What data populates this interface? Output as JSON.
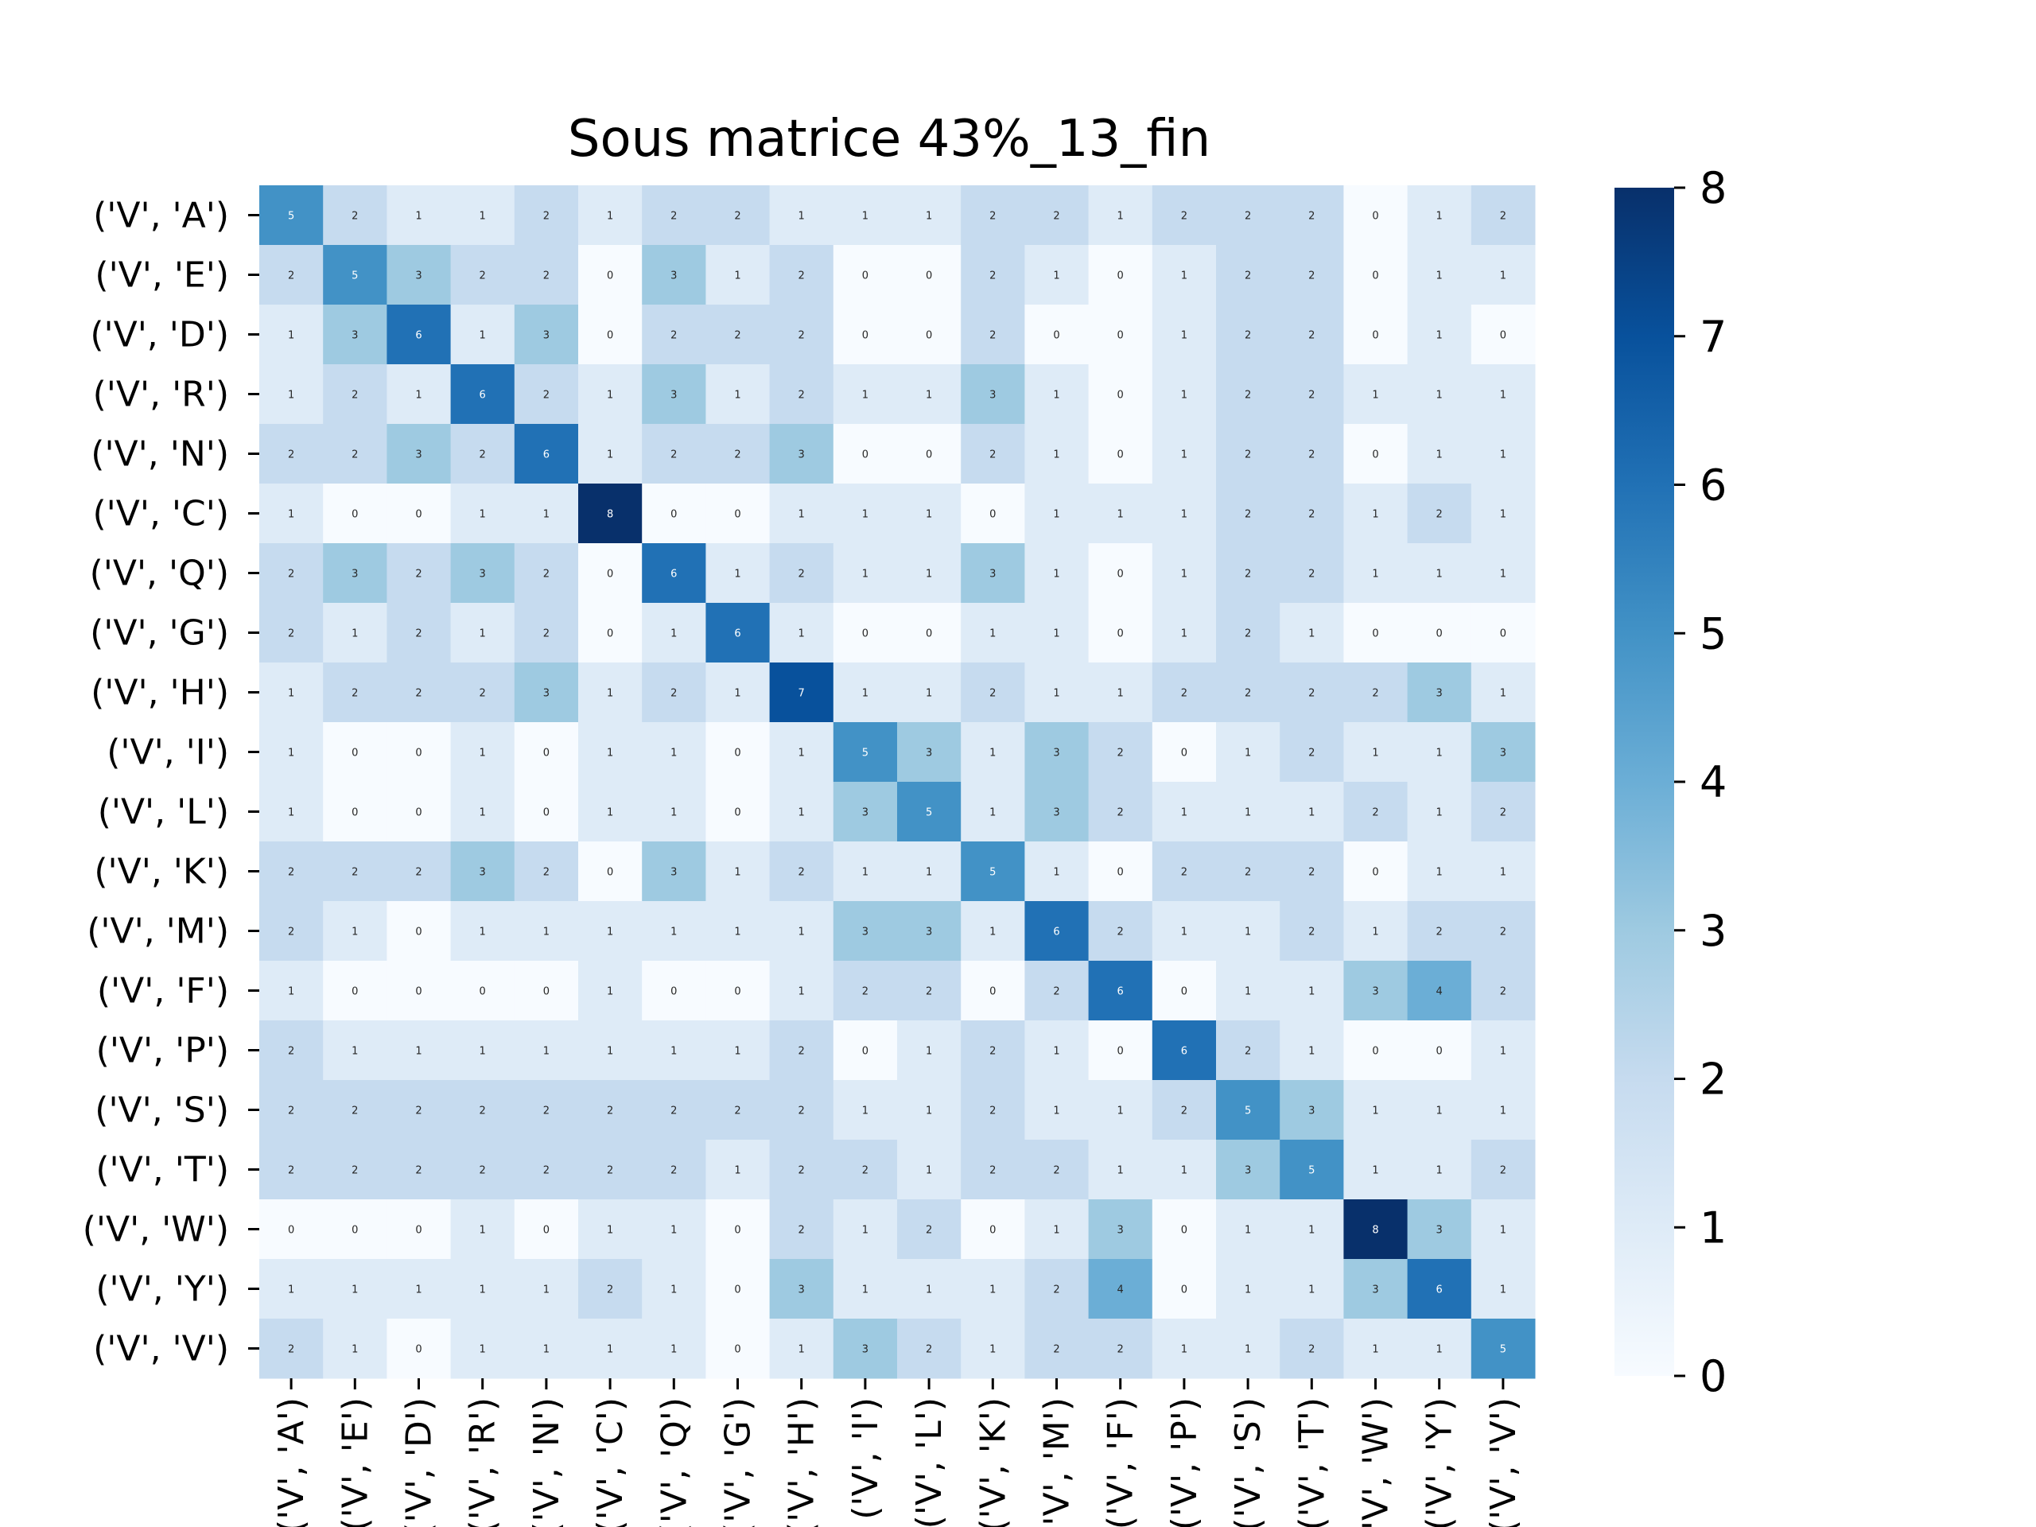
{
  "chart_data": {
    "type": "heatmap",
    "title": "Sous matrice 43%_13_fin",
    "row_labels": [
      "('V', 'A')",
      "('V', 'E')",
      "('V', 'D')",
      "('V', 'R')",
      "('V', 'N')",
      "('V', 'C')",
      "('V', 'Q')",
      "('V', 'G')",
      "('V', 'H')",
      "('V', 'I')",
      "('V', 'L')",
      "('V', 'K')",
      "('V', 'M')",
      "('V', 'F')",
      "('V', 'P')",
      "('V', 'S')",
      "('V', 'T')",
      "('V', 'W')",
      "('V', 'Y')",
      "('V', 'V')"
    ],
    "col_labels": [
      "('V', 'A')",
      "('V', 'E')",
      "('V', 'D')",
      "('V', 'R')",
      "('V', 'N')",
      "('V', 'C')",
      "('V', 'Q')",
      "('V', 'G')",
      "('V', 'H')",
      "('V', 'I')",
      "('V', 'L')",
      "('V', 'K')",
      "('V', 'M')",
      "('V', 'F')",
      "('V', 'P')",
      "('V', 'S')",
      "('V', 'T')",
      "('V', 'W')",
      "('V', 'Y')",
      "('V', 'V')"
    ],
    "values": [
      [
        5,
        2,
        1,
        1,
        2,
        1,
        2,
        2,
        1,
        1,
        1,
        2,
        2,
        1,
        2,
        2,
        2,
        0,
        1,
        2
      ],
      [
        2,
        5,
        3,
        2,
        2,
        0,
        3,
        1,
        2,
        0,
        0,
        2,
        1,
        0,
        1,
        2,
        2,
        0,
        1,
        1
      ],
      [
        1,
        3,
        6,
        1,
        3,
        0,
        2,
        2,
        2,
        0,
        0,
        2,
        0,
        0,
        1,
        2,
        2,
        0,
        1,
        0
      ],
      [
        1,
        2,
        1,
        6,
        2,
        1,
        3,
        1,
        2,
        1,
        1,
        3,
        1,
        0,
        1,
        2,
        2,
        1,
        1,
        1
      ],
      [
        2,
        2,
        3,
        2,
        6,
        1,
        2,
        2,
        3,
        0,
        0,
        2,
        1,
        0,
        1,
        2,
        2,
        0,
        1,
        1
      ],
      [
        1,
        0,
        0,
        1,
        1,
        8,
        0,
        0,
        1,
        1,
        1,
        0,
        1,
        1,
        1,
        2,
        2,
        1,
        2,
        1
      ],
      [
        2,
        3,
        2,
        3,
        2,
        0,
        6,
        1,
        2,
        1,
        1,
        3,
        1,
        0,
        1,
        2,
        2,
        1,
        1,
        1
      ],
      [
        2,
        1,
        2,
        1,
        2,
        0,
        1,
        6,
        1,
        0,
        0,
        1,
        1,
        0,
        1,
        2,
        1,
        0,
        0,
        0
      ],
      [
        1,
        2,
        2,
        2,
        3,
        1,
        2,
        1,
        7,
        1,
        1,
        2,
        1,
        1,
        2,
        2,
        2,
        2,
        3,
        1
      ],
      [
        1,
        0,
        0,
        1,
        0,
        1,
        1,
        0,
        1,
        5,
        3,
        1,
        3,
        2,
        0,
        1,
        2,
        1,
        1,
        3
      ],
      [
        1,
        0,
        0,
        1,
        0,
        1,
        1,
        0,
        1,
        3,
        5,
        1,
        3,
        2,
        1,
        1,
        1,
        2,
        1,
        2
      ],
      [
        2,
        2,
        2,
        3,
        2,
        0,
        3,
        1,
        2,
        1,
        1,
        5,
        1,
        0,
        2,
        2,
        2,
        0,
        1,
        1
      ],
      [
        2,
        1,
        0,
        1,
        1,
        1,
        1,
        1,
        1,
        3,
        3,
        1,
        6,
        2,
        1,
        1,
        2,
        1,
        2,
        2
      ],
      [
        1,
        0,
        0,
        0,
        0,
        1,
        0,
        0,
        1,
        2,
        2,
        0,
        2,
        6,
        0,
        1,
        1,
        3,
        4,
        2
      ],
      [
        2,
        1,
        1,
        1,
        1,
        1,
        1,
        1,
        2,
        0,
        1,
        2,
        1,
        0,
        6,
        2,
        1,
        0,
        0,
        1
      ],
      [
        2,
        2,
        2,
        2,
        2,
        2,
        2,
        2,
        2,
        1,
        1,
        2,
        1,
        1,
        2,
        5,
        3,
        1,
        1,
        1
      ],
      [
        2,
        2,
        2,
        2,
        2,
        2,
        2,
        1,
        2,
        2,
        1,
        2,
        2,
        1,
        1,
        3,
        5,
        1,
        1,
        2
      ],
      [
        0,
        0,
        0,
        1,
        0,
        1,
        1,
        0,
        2,
        1,
        2,
        0,
        1,
        3,
        0,
        1,
        1,
        8,
        3,
        1
      ],
      [
        1,
        1,
        1,
        1,
        1,
        2,
        1,
        0,
        3,
        1,
        1,
        1,
        2,
        4,
        0,
        1,
        1,
        3,
        6,
        1
      ],
      [
        2,
        1,
        0,
        1,
        1,
        1,
        1,
        0,
        1,
        3,
        2,
        1,
        2,
        2,
        1,
        1,
        2,
        1,
        1,
        5
      ]
    ],
    "vmin": 0,
    "vmax": 8,
    "colormap": "Blues",
    "colorbar_ticks": [
      0,
      1,
      2,
      3,
      4,
      5,
      6,
      7,
      8
    ],
    "grid": false
  }
}
